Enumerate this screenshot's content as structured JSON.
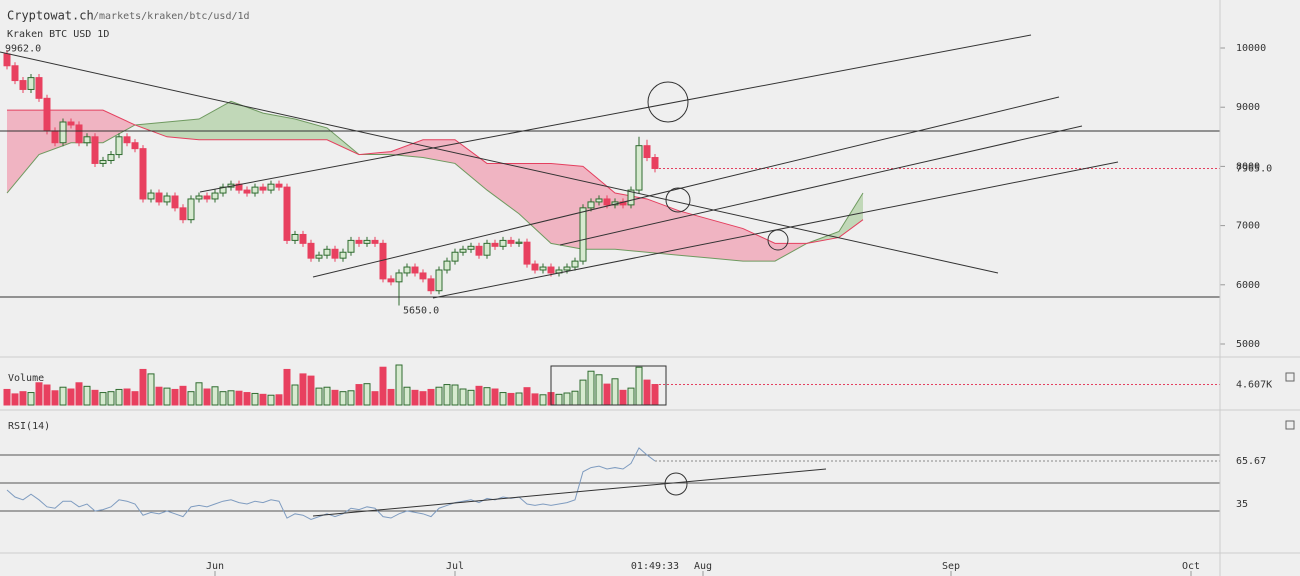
{
  "header": {
    "site": "Cryptowat.ch",
    "path": "/markets/kraken/btc/usd/1d",
    "cursor_time": "01:49:33"
  },
  "chart_data": [
    {
      "type": "candlestick",
      "title": "Kraken BTC USD 1D",
      "x": [
        -26,
        -25,
        -24,
        -23,
        -22,
        -21,
        -20,
        -19,
        -18,
        -17,
        -16,
        -15,
        -14,
        -13,
        -12,
        -11,
        -10,
        -9,
        -8,
        -7,
        -6,
        -5,
        -4,
        -3,
        -2,
        -1,
        0,
        1,
        2,
        3,
        4,
        5,
        6,
        7,
        8,
        9,
        10,
        11,
        12,
        13,
        14,
        15,
        16,
        17,
        18,
        19,
        20,
        21,
        22,
        23,
        24,
        25,
        26,
        27,
        28,
        29,
        30,
        31,
        32,
        33,
        34,
        35,
        36,
        37,
        38,
        39,
        40,
        41,
        42,
        43,
        44,
        45,
        46,
        47,
        48,
        49,
        50,
        51,
        52,
        53,
        54,
        55
      ],
      "open": [
        9900,
        9700,
        9450,
        9300,
        9500,
        9150,
        8600,
        8400,
        8750,
        8700,
        8400,
        8500,
        8050,
        8100,
        8200,
        8500,
        8400,
        8300,
        7450,
        7550,
        7400,
        7500,
        7300,
        7100,
        7450,
        7500,
        7450,
        7550,
        7650,
        7700,
        7600,
        7550,
        7650,
        7600,
        7700,
        7650,
        6750,
        6850,
        6700,
        6450,
        6500,
        6600,
        6450,
        6550,
        6750,
        6700,
        6750,
        6700,
        6100,
        6050,
        6200,
        6300,
        6200,
        6100,
        5900,
        6250,
        6400,
        6550,
        6600,
        6650,
        6500,
        6700,
        6650,
        6750,
        6700,
        6720,
        6350,
        6250,
        6300,
        6200,
        6250,
        6300,
        6400,
        7300,
        7400,
        7450,
        7350,
        7400,
        7350,
        7600,
        8350,
        8150
      ],
      "high": [
        9962,
        9760,
        9510,
        9560,
        9560,
        9210,
        8660,
        8810,
        8810,
        8760,
        8560,
        8560,
        8160,
        8260,
        8560,
        8560,
        8460,
        8360,
        7610,
        7610,
        7560,
        7560,
        7360,
        7510,
        7560,
        7560,
        7610,
        7710,
        7760,
        7760,
        7660,
        7710,
        7710,
        7760,
        7760,
        7710,
        6910,
        6910,
        6760,
        6560,
        6660,
        6660,
        6610,
        6810,
        6810,
        6810,
        6810,
        6760,
        6160,
        6260,
        6360,
        6360,
        6260,
        6160,
        6310,
        6460,
        6610,
        6660,
        6710,
        6710,
        6760,
        6760,
        6810,
        6810,
        6780,
        6780,
        6410,
        6360,
        6360,
        6310,
        6360,
        6460,
        7360,
        7460,
        7510,
        7510,
        7460,
        7460,
        7660,
        8500,
        8450,
        8210
      ],
      "low": [
        9640,
        9390,
        9240,
        9240,
        9090,
        8540,
        8340,
        8340,
        8640,
        8340,
        8340,
        7990,
        7990,
        8040,
        8140,
        8340,
        8240,
        7390,
        7390,
        7340,
        7340,
        7240,
        7040,
        7040,
        7390,
        7390,
        7390,
        7490,
        7590,
        7540,
        7490,
        7490,
        7540,
        7540,
        7590,
        6690,
        6690,
        6640,
        6390,
        6390,
        6440,
        6390,
        6390,
        6490,
        6640,
        6640,
        6640,
        6040,
        5990,
        5650,
        6140,
        6140,
        6040,
        5840,
        5840,
        6190,
        6340,
        6490,
        6540,
        6440,
        6440,
        6590,
        6590,
        6640,
        6640,
        6290,
        6190,
        6190,
        6140,
        6140,
        6190,
        6240,
        6340,
        7240,
        7340,
        7290,
        7290,
        7290,
        7290,
        7540,
        8090,
        7900
      ],
      "close": [
        9700,
        9450,
        9300,
        9500,
        9150,
        8600,
        8400,
        8750,
        8700,
        8400,
        8500,
        8050,
        8100,
        8200,
        8500,
        8400,
        8300,
        7450,
        7550,
        7400,
        7500,
        7300,
        7100,
        7450,
        7500,
        7450,
        7550,
        7650,
        7700,
        7600,
        7550,
        7650,
        7600,
        7700,
        7650,
        6750,
        6850,
        6700,
        6450,
        6500,
        6600,
        6450,
        6550,
        6750,
        6700,
        6750,
        6700,
        6100,
        6050,
        6200,
        6300,
        6200,
        6100,
        5900,
        6250,
        6400,
        6550,
        6600,
        6650,
        6500,
        6700,
        6650,
        6750,
        6700,
        6720,
        6350,
        6250,
        6300,
        6200,
        6250,
        6300,
        6400,
        7300,
        7400,
        7450,
        7350,
        7400,
        7350,
        7600,
        8350,
        8150,
        7965
      ],
      "up_color": "#2f6b2f",
      "up_fill": "#d7ead0",
      "down_color": "#e8405f",
      "xlim": [
        -26.875,
        125.625
      ],
      "xticks": [
        {
          "value": 0,
          "label": "Jun"
        },
        {
          "value": 30,
          "label": "Jul"
        },
        {
          "value": 61,
          "label": "Aug"
        },
        {
          "value": 92,
          "label": "Sep"
        },
        {
          "value": 122,
          "label": "Oct"
        }
      ],
      "ylim": [
        4814,
        10811
      ],
      "yticks": [
        5000,
        6000,
        7000,
        8000,
        9000,
        10000
      ],
      "last_price": {
        "value": 7965,
        "label": "7965.0"
      },
      "annotations": [
        {
          "x": -26,
          "value": 9962,
          "label": "9962.0"
        },
        {
          "x": 23,
          "value": 5650,
          "label": "5650.0"
        }
      ],
      "cloud": {
        "x": [
          -26,
          -22,
          -18,
          -14,
          -10,
          -6,
          -2,
          2,
          6,
          10,
          14,
          18,
          22,
          26,
          30,
          34,
          38,
          42,
          46,
          50,
          54,
          58,
          62,
          66,
          70,
          74,
          78,
          81
        ],
        "span_a": [
          7550,
          8200,
          8400,
          8400,
          8700,
          8750,
          8800,
          9100,
          8900,
          8800,
          8650,
          8200,
          8200,
          8150,
          8050,
          7600,
          7200,
          6700,
          6600,
          6600,
          6550,
          6500,
          6450,
          6400,
          6400,
          6700,
          6900,
          7550
        ],
        "span_b": [
          8950,
          8950,
          8950,
          8950,
          8700,
          8500,
          8450,
          8450,
          8450,
          8450,
          8450,
          8200,
          8250,
          8450,
          8450,
          8050,
          8050,
          8050,
          8000,
          7550,
          7450,
          7250,
          7100,
          6950,
          6700,
          6700,
          6800,
          7100
        ],
        "up_color": "#b9d4ae",
        "up_line": "#6f9a60",
        "down_color": "#f0a9ba",
        "down_line": "#e4405f"
      }
    },
    {
      "type": "bar",
      "title": "Volume",
      "values": [
        3500,
        2500,
        3000,
        2800,
        5000,
        4500,
        3200,
        4000,
        3600,
        5000,
        4200,
        3300,
        2800,
        3000,
        3500,
        3600,
        3000,
        8000,
        7000,
        4000,
        3800,
        3500,
        4200,
        3000,
        5000,
        3600,
        4100,
        3000,
        3200,
        3100,
        2800,
        2600,
        2400,
        2200,
        2300,
        8000,
        4500,
        7000,
        6500,
        3800,
        4000,
        3300,
        3000,
        3200,
        4600,
        4800,
        3000,
        8500,
        3500,
        9000,
        4000,
        3300,
        3000,
        3500,
        4000,
        4600,
        4500,
        3600,
        3300,
        4200,
        3900,
        3600,
        2800,
        2600,
        2700,
        3900,
        2500,
        2300,
        2800,
        2400,
        2700,
        3100,
        5600,
        7600,
        6800,
        4700,
        5900,
        3300,
        3800,
        8500,
        5600,
        4607
      ],
      "ylim": [
        0,
        9000
      ],
      "last_value": {
        "value": 4607,
        "label": "4.607K"
      }
    },
    {
      "type": "line",
      "title": "RSI(14)",
      "color": "#7f9cc0",
      "values": [
        45,
        40,
        38,
        42,
        38,
        33,
        32,
        37,
        37,
        33,
        35,
        30,
        31,
        33,
        38,
        37,
        35,
        27,
        29,
        28,
        30,
        28,
        26,
        33,
        34,
        33,
        35,
        37,
        38,
        36,
        35,
        37,
        36,
        38,
        37,
        25,
        28,
        27,
        24,
        26,
        28,
        26,
        28,
        32,
        31,
        33,
        32,
        26,
        25,
        28,
        30,
        29,
        28,
        26,
        32,
        34,
        36,
        37,
        38,
        36,
        39,
        38,
        40,
        39,
        40,
        35,
        34,
        35,
        34,
        35,
        36,
        38,
        58,
        61,
        62,
        60,
        61,
        60,
        64,
        75,
        70,
        65.67
      ],
      "ylim": [
        2.2,
        98.5
      ],
      "yticks": [
        35
      ],
      "levels": [
        30,
        50,
        70
      ]
    }
  ]
}
